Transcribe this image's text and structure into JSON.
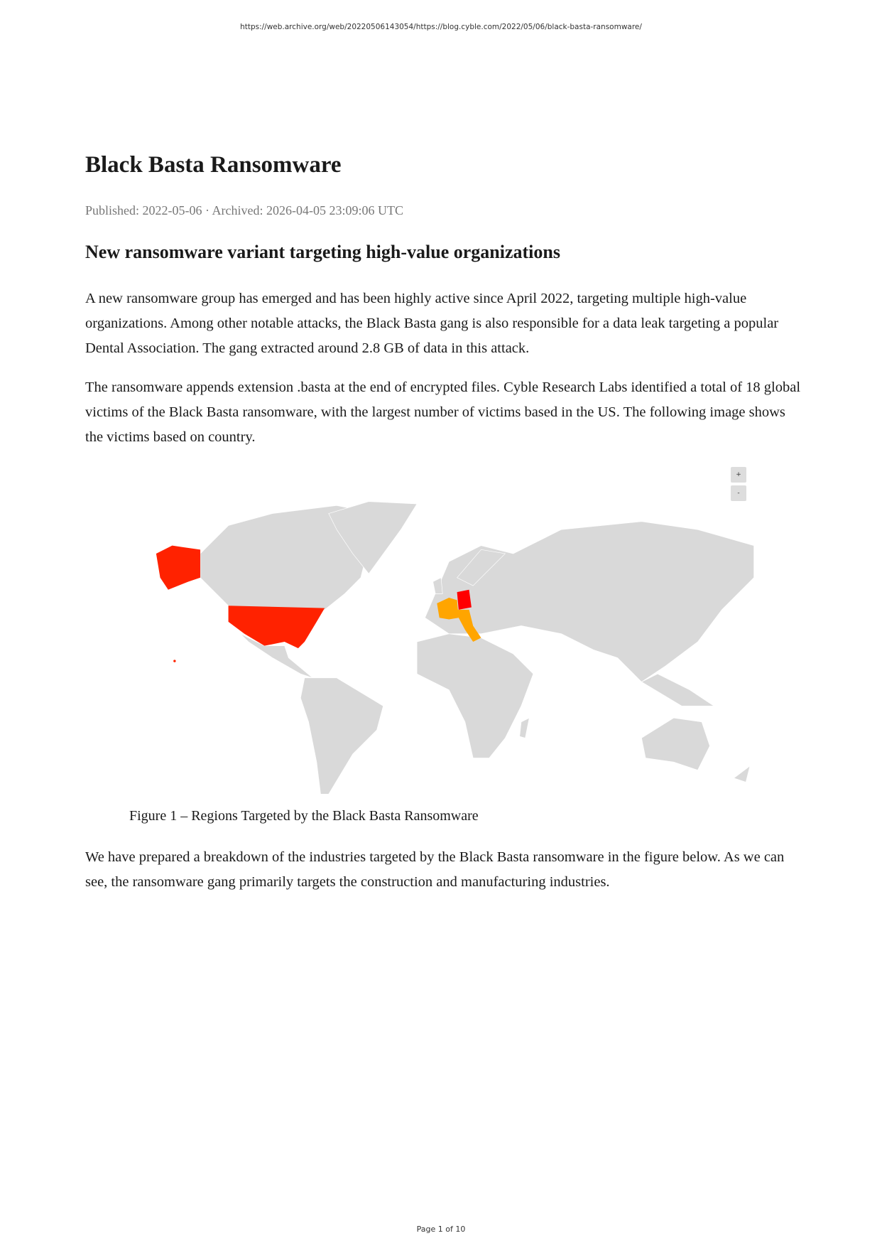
{
  "header": {
    "url": "https://web.archive.org/web/20220506143054/https://blog.cyble.com/2022/05/06/black-basta-ransomware/"
  },
  "article": {
    "title": "Black Basta Ransomware",
    "meta": "Published: 2022-05-06 · Archived: 2026-04-05 23:09:06 UTC",
    "subheading": "New ransomware variant targeting high-value organizations",
    "paragraphs": [
      "A new ransomware group has emerged and has been highly active since April 2022, targeting multiple high-value organizations. Among other notable attacks, the Black Basta gang is also responsible for a data leak targeting a popular Dental Association. The gang extracted around 2.8 GB of data in this attack.",
      "The ransomware appends extension .basta at the end of encrypted files. Cyble Research Labs identified a total of 18 global victims of the Black Basta ransomware, with the largest number of victims based in the US. The following image shows the victims based on country.",
      "We have prepared a breakdown of the industries targeted by the Black Basta ransomware in the figure below. As we can see, the ransomware gang primarily targets the construction and manufacturing industries."
    ],
    "figure_caption": "Figure 1 – Regions Targeted by the Black Basta Ransomware"
  },
  "map": {
    "zoom_in_label": "+",
    "zoom_out_label": "-",
    "base_color": "#d9d9d9",
    "highlighted": [
      {
        "country": "United States",
        "color": "#ff2200"
      },
      {
        "country": "Germany",
        "color": "#ff0000"
      },
      {
        "country": "France",
        "color": "#ffa500"
      },
      {
        "country": "Italy",
        "color": "#ffa500"
      },
      {
        "country": "Switzerland",
        "color": "#ffa500"
      }
    ]
  },
  "footer": {
    "page": "Page 1 of 10"
  }
}
